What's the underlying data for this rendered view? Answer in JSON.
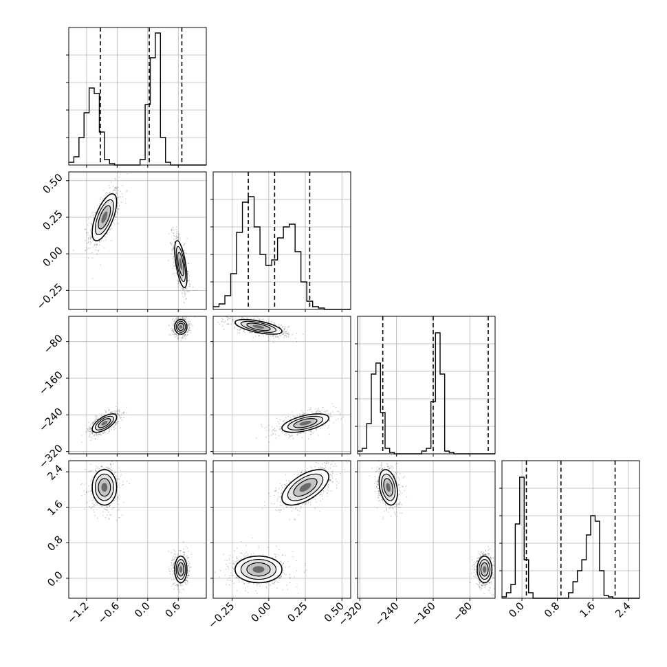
{
  "chart_data": {
    "type": "corner",
    "description_of_layout": "lower-triangular matrix of 1D histograms (diagonal) and 2D density contours (off-diagonal)",
    "grid": true,
    "parameters": [
      {
        "index": 0,
        "range": [
          -1.55,
          1.15
        ],
        "ticks": [
          -1.2,
          -0.6,
          0.0,
          0.6
        ],
        "tick_labels": [
          "−1.2",
          "−0.6",
          "0.0",
          "0.6"
        ],
        "quantiles": [
          -0.93,
          0.03,
          0.67
        ],
        "hist_bin_edges_start": -1.55,
        "hist_bin_width": 0.1,
        "hist_counts": [
          0.02,
          0.06,
          0.2,
          0.38,
          0.56,
          0.52,
          0.24,
          0.04,
          0.01,
          0,
          0,
          0,
          0,
          0,
          0.04,
          0.44,
          0.78,
          0.96,
          0.2,
          0.02,
          0,
          0,
          0,
          0,
          0,
          0,
          0
        ]
      },
      {
        "index": 1,
        "range": [
          -0.38,
          0.56
        ],
        "ticks": [
          -0.25,
          0.0,
          0.25,
          0.5
        ],
        "tick_labels": [
          "−0.25",
          "0.00",
          "0.25",
          "0.50"
        ],
        "quantiles": [
          -0.14,
          0.04,
          0.28
        ],
        "hist_bin_edges_start": -0.38,
        "hist_bin_width": 0.04,
        "hist_counts": [
          0.02,
          0.04,
          0.1,
          0.26,
          0.56,
          0.78,
          0.82,
          0.6,
          0.4,
          0.32,
          0.36,
          0.52,
          0.6,
          0.62,
          0.42,
          0.2,
          0.06,
          0.02,
          0.01,
          0,
          0,
          0,
          0,
          0
        ]
      },
      {
        "index": 2,
        "range": [
          -325,
          -25
        ],
        "ticks": [
          -320,
          -240,
          -160,
          -80
        ],
        "tick_labels": [
          "−320",
          "−240",
          "−160",
          "−80"
        ],
        "quantiles": [
          -270,
          -160,
          -40
        ],
        "hist_bin_edges_start": -325,
        "hist_bin_width": 10,
        "hist_counts": [
          0.02,
          0.04,
          0.22,
          0.58,
          0.66,
          0.3,
          0.04,
          0.01,
          0,
          0,
          0,
          0,
          0,
          0,
          0.02,
          0.04,
          0.38,
          0.88,
          0.58,
          0.02,
          0.01,
          0,
          0,
          0,
          0,
          0,
          0,
          0,
          0,
          0
        ]
      },
      {
        "index": 3,
        "range": [
          -0.45,
          2.65
        ],
        "ticks": [
          0.0,
          0.8,
          1.6,
          2.4
        ],
        "tick_labels": [
          "0.0",
          "0.8",
          "1.6",
          "2.4"
        ],
        "quantiles": [
          0.1,
          0.88,
          2.1
        ],
        "hist_bin_edges_start": -0.45,
        "hist_bin_width": 0.1,
        "hist_counts": [
          0.01,
          0.04,
          0.1,
          0.54,
          0.88,
          0.28,
          0.04,
          0,
          0,
          0,
          0,
          0,
          0,
          0,
          0,
          0.04,
          0.12,
          0.2,
          0.28,
          0.46,
          0.6,
          0.56,
          0.2,
          0.02,
          0.01,
          0,
          0,
          0,
          0,
          0,
          0
        ]
      }
    ],
    "modes": [
      {
        "center": [
          -0.85,
          0.25,
          -258,
          2.05
        ],
        "sigma": [
          0.12,
          0.08,
          10,
          0.2
        ],
        "correlation": [
          [
            0,
            1,
            0.65
          ],
          [
            0,
            2,
            0.65
          ],
          [
            1,
            2,
            0.55
          ],
          [
            0,
            3,
            0.0
          ],
          [
            1,
            3,
            0.6
          ],
          [
            2,
            3,
            -0.3
          ]
        ]
      },
      {
        "center": [
          0.65,
          -0.07,
          -48,
          0.2
        ],
        "sigma": [
          0.06,
          0.08,
          8,
          0.15
        ],
        "correlation": [
          [
            0,
            1,
            -0.6
          ],
          [
            0,
            2,
            0.0
          ],
          [
            1,
            2,
            -0.6
          ],
          [
            0,
            3,
            0.0
          ],
          [
            1,
            3,
            0.0
          ],
          [
            2,
            3,
            0.0
          ]
        ]
      }
    ]
  }
}
